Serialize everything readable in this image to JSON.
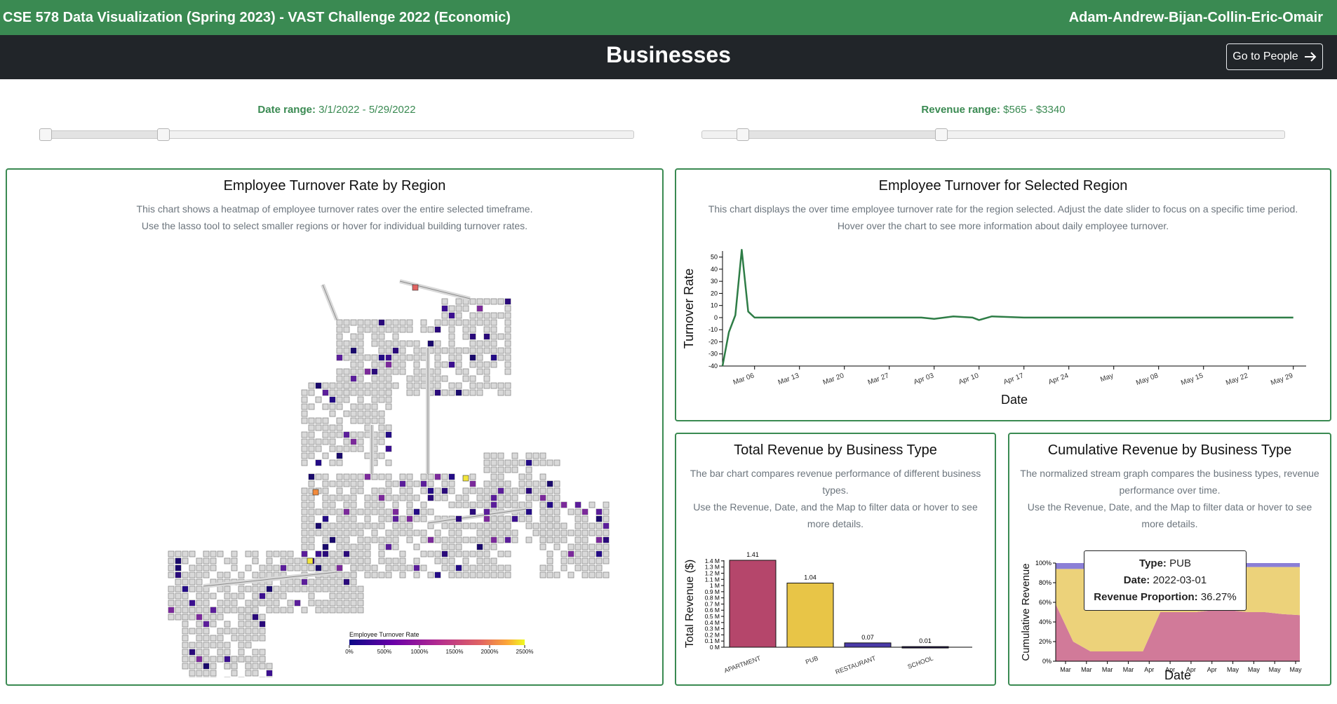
{
  "header": {
    "course_title": "CSE 578 Data Visualization (Spring 2023) - VAST Challenge 2022 (Economic)",
    "team": "Adam-Andrew-Bijan-Collin-Eric-Omair"
  },
  "page": {
    "title": "Businesses",
    "nav_button": "Go to People",
    "nav_arrow": "arrow-right-icon"
  },
  "filters": {
    "date": {
      "label": "Date range:",
      "value": "3/1/2022 - 5/29/2022",
      "low_fraction": 0.0,
      "high_fraction": 0.2
    },
    "revenue": {
      "label": "Revenue range:",
      "value": "$565 - $3340",
      "low_fraction": 0.07,
      "high_fraction": 0.41
    }
  },
  "panels": {
    "map": {
      "title": "Employee Turnover Rate by Region",
      "desc1": "This chart shows a heatmap of employee turnover rates over the entire selected timeframe.",
      "desc2": "Use the lasso tool to select smaller regions or hover for individual building turnover rates."
    },
    "turnover": {
      "title": "Employee Turnover for Selected Region",
      "desc1": "This chart displays the over time employee turnover rate for the region selected. Adjust the date slider to focus on a specific time period.",
      "desc2": "Hover over the chart to see more information about daily employee turnover."
    },
    "revenue": {
      "title": "Total Revenue by Business Type",
      "desc1": "The bar chart compares revenue performance of different business",
      "desc2": "types.",
      "desc3": "Use the Revenue, Date, and the Map to filter data or hover to see",
      "desc4": "more details."
    },
    "stream": {
      "title": "Cumulative Revenue by Business Type",
      "desc1": "The normalized stream graph compares the business types, revenue",
      "desc2": "performance over time.",
      "desc3": "Use the Revenue, Date, and the Map to filter data or hover to see",
      "desc4": "more details."
    }
  },
  "tooltip": {
    "type_label": "Type:",
    "type_value": "PUB",
    "date_label": "Date:",
    "date_value": "2022-03-01",
    "prop_label": "Revenue Proportion:",
    "prop_value": "36.27%"
  },
  "chart_data": [
    {
      "type": "heatmap",
      "title": "Employee Turnover Rate by Region",
      "legend_title": "Employee Turnover Rate",
      "legend_ticks": [
        "0%",
        "500%",
        "1000%",
        "1500%",
        "2000%",
        "2500%"
      ],
      "colors": {
        "road": "#c8c8c8",
        "low": "#1a0a6b",
        "mid": "#7b2a9a",
        "high": "#f2e53c"
      }
    },
    {
      "type": "line",
      "title": "Employee Turnover for Selected Region",
      "xlabel": "Date",
      "ylabel": "Turnover Rate",
      "ylim": [
        -40,
        55
      ],
      "yticks": [
        -40,
        -30,
        -20,
        -10,
        0,
        10,
        20,
        30,
        40,
        50
      ],
      "xticks": [
        "Mar 06",
        "Mar 13",
        "Mar 20",
        "Mar 27",
        "Apr 03",
        "Apr 10",
        "Apr 17",
        "Apr 24",
        "May",
        "May 08",
        "May 15",
        "May 22",
        "May 29"
      ],
      "color": "#2e7d46",
      "x": [
        "2022-03-01",
        "2022-03-02",
        "2022-03-03",
        "2022-03-04",
        "2022-03-05",
        "2022-03-06",
        "2022-03-07",
        "2022-03-08",
        "2022-03-09",
        "2022-03-10",
        "2022-03-13",
        "2022-03-20",
        "2022-03-27",
        "2022-04-01",
        "2022-04-03",
        "2022-04-06",
        "2022-04-09",
        "2022-04-10",
        "2022-04-12",
        "2022-04-17",
        "2022-04-24",
        "2022-05-01",
        "2022-05-08",
        "2022-05-15",
        "2022-05-22",
        "2022-05-29"
      ],
      "y": [
        -40,
        -12,
        2,
        56,
        5,
        0,
        0,
        0,
        0,
        0,
        0,
        0,
        0,
        0,
        -1,
        1,
        0,
        -2,
        1,
        0,
        0,
        0,
        0,
        0,
        0,
        0
      ]
    },
    {
      "type": "bar",
      "title": "Total Revenue by Business Type",
      "ylabel": "Total Revenue ($)",
      "categories": [
        "APARTMENT",
        "PUB",
        "RESTAURANT",
        "SCHOOL"
      ],
      "values": [
        1.41,
        1.04,
        0.07,
        0.01
      ],
      "value_labels": [
        "1.41",
        "1.04",
        "0.07",
        "0.01"
      ],
      "colors": [
        "#b5466b",
        "#e8c547",
        "#4a3aa8",
        "#1c1145"
      ],
      "ylim": [
        0,
        1.41
      ],
      "yticks": [
        "0 M",
        "0.1 M",
        "0.2 M",
        "0.3 M",
        "0.4 M",
        "0.5 M",
        "0.6 M",
        "0.7 M",
        "0.8 M",
        "0.9 M",
        "1 M",
        "1.1 M",
        "1.2 M",
        "1.3 M",
        "1.4 M"
      ]
    },
    {
      "type": "area",
      "title": "Cumulative Revenue by Business Type",
      "xlabel": "Date",
      "ylabel": "Cumulative Revenue",
      "ylim": [
        0,
        100
      ],
      "yticks": [
        "0%",
        "20%",
        "40%",
        "60%",
        "80%",
        "100%"
      ],
      "xticks": [
        "Mar",
        "Mar",
        "Mar",
        "Mar",
        "Apr",
        "Apr",
        "Apr",
        "Apr",
        "May",
        "May",
        "May",
        "May"
      ],
      "series": [
        {
          "color": "#d17a99",
          "values": [
            58,
            20,
            10,
            10,
            10,
            10,
            50,
            50,
            50,
            52,
            52,
            50,
            50,
            48,
            47
          ]
        },
        {
          "color": "#ecd27a",
          "values": [
            36,
            74,
            84,
            84,
            84,
            86,
            46,
            45,
            45,
            44,
            44,
            46,
            46,
            48,
            49
          ]
        },
        {
          "color": "#8b7fd6",
          "values": [
            6,
            6,
            6,
            6,
            6,
            4,
            4,
            5,
            5,
            4,
            4,
            4,
            4,
            4,
            4
          ]
        }
      ]
    }
  ]
}
